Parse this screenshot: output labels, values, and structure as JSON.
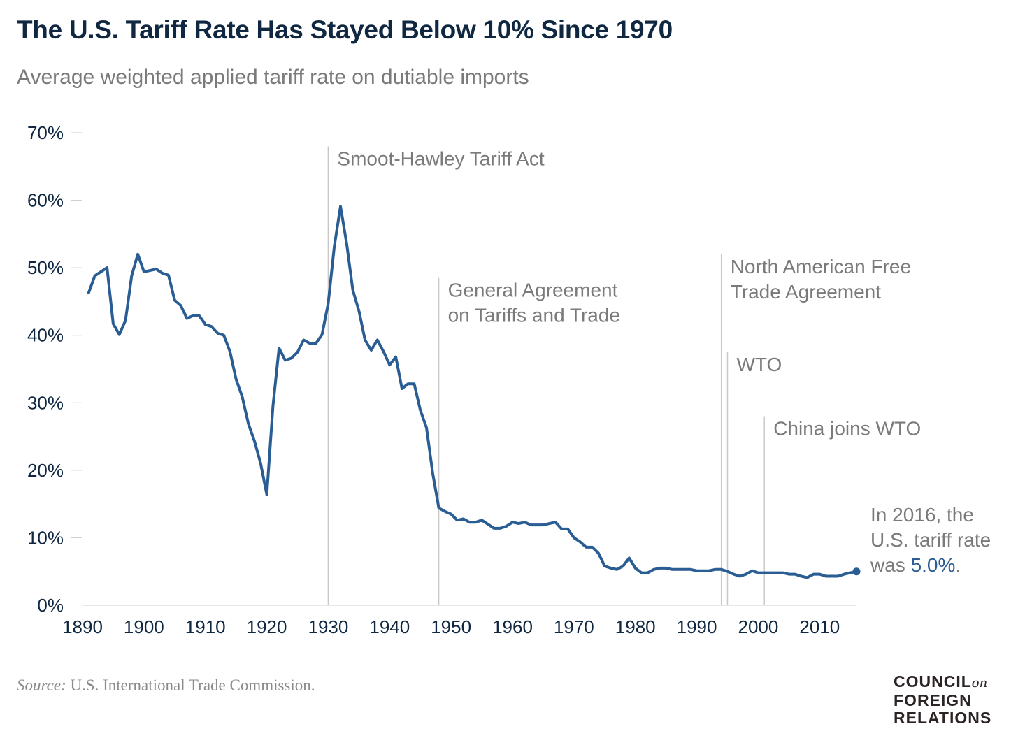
{
  "header": {
    "title": "The U.S. Tariff Rate Has Stayed Below 10% Since 1970",
    "subtitle": "Average weighted applied tariff rate on dutiable imports"
  },
  "footer": {
    "source_label": "Source:",
    "source_text": " U.S. International Trade Commission.",
    "logo_line1": "COUNCIL",
    "logo_on": "on",
    "logo_line2": "FOREIGN",
    "logo_line3": "RELATIONS"
  },
  "colors": {
    "line": "#2a5d93",
    "axis_text": "#0f2740",
    "annotation_text": "#7a7a7a",
    "annotation_line": "#c8c8c8"
  },
  "chart_data": {
    "type": "line",
    "title": "The U.S. Tariff Rate Has Stayed Below 10% Since 1970",
    "subtitle": "Average weighted applied tariff rate on dutiable imports",
    "xlabel": "",
    "ylabel": "",
    "xlim": [
      1890,
      2016
    ],
    "ylim": [
      0,
      70
    ],
    "x_ticks": [
      1890,
      1900,
      1910,
      1920,
      1930,
      1940,
      1950,
      1960,
      1970,
      1980,
      1990,
      2000,
      2010
    ],
    "y_ticks": [
      0,
      10,
      20,
      30,
      40,
      50,
      60,
      70
    ],
    "y_tick_labels": [
      "0%",
      "10%",
      "20%",
      "30%",
      "40%",
      "50%",
      "60%",
      "70%"
    ],
    "grid": false,
    "series": [
      {
        "x": [
          1891,
          1892,
          1894,
          1895,
          1896,
          1897,
          1898,
          1899,
          1900,
          1902,
          1903,
          1904,
          1905,
          1906,
          1907,
          1908,
          1909,
          1910,
          1911,
          1912,
          1913,
          1914,
          1915,
          1916,
          1917,
          1918,
          1919,
          1920,
          1921,
          1922,
          1923,
          1924,
          1925,
          1926,
          1927,
          1928,
          1929,
          1930,
          1931,
          1932,
          1933,
          1934,
          1935,
          1936,
          1937,
          1938,
          1939,
          1940,
          1941,
          1942,
          1943,
          1944,
          1945,
          1946,
          1947,
          1948,
          1949,
          1950,
          1951,
          1952,
          1953,
          1954,
          1955,
          1956,
          1957,
          1958,
          1959,
          1960,
          1961,
          1962,
          1963,
          1964,
          1965,
          1966,
          1967,
          1968,
          1969,
          1970,
          1971,
          1972,
          1973,
          1974,
          1975,
          1976,
          1977,
          1978,
          1979,
          1980,
          1981,
          1982,
          1983,
          1984,
          1985,
          1986,
          1987,
          1988,
          1989,
          1990,
          1991,
          1992,
          1993,
          1994,
          1995,
          1996,
          1997,
          1998,
          1999,
          2000,
          2001,
          2002,
          2003,
          2004,
          2005,
          2006,
          2007,
          2008,
          2009,
          2010,
          2011,
          2012,
          2013,
          2014,
          2015,
          2016
        ],
        "values": [
          46.3,
          48.8,
          50.0,
          41.7,
          40.1,
          42.2,
          48.8,
          52.0,
          49.4,
          49.8,
          49.2,
          48.9,
          45.2,
          44.4,
          42.5,
          42.9,
          42.9,
          41.6,
          41.3,
          40.3,
          40.0,
          37.6,
          33.5,
          30.9,
          26.9,
          24.3,
          21.0,
          16.4,
          29.5,
          38.1,
          36.3,
          36.6,
          37.5,
          39.3,
          38.8,
          38.8,
          40.1,
          44.7,
          53.2,
          59.1,
          53.6,
          46.7,
          43.6,
          39.3,
          37.8,
          39.3,
          37.6,
          35.6,
          36.8,
          32.1,
          32.8,
          32.8,
          28.9,
          26.3,
          19.6,
          14.4,
          13.9,
          13.5,
          12.6,
          12.8,
          12.3,
          12.3,
          12.6,
          12.0,
          11.4,
          11.4,
          11.7,
          12.3,
          12.1,
          12.3,
          11.9,
          11.9,
          11.9,
          12.1,
          12.3,
          11.3,
          11.3,
          10.0,
          9.4,
          8.6,
          8.6,
          7.7,
          5.8,
          5.5,
          5.3,
          5.8,
          7.0,
          5.5,
          4.8,
          4.8,
          5.3,
          5.5,
          5.5,
          5.3,
          5.3,
          5.3,
          5.3,
          5.1,
          5.1,
          5.1,
          5.3,
          5.3,
          5.0,
          4.6,
          4.3,
          4.6,
          5.1,
          4.8,
          4.8,
          4.8,
          4.8,
          4.8,
          4.6,
          4.6,
          4.3,
          4.1,
          4.6,
          4.6,
          4.3,
          4.3,
          4.3,
          4.6,
          4.8,
          5.0
        ]
      }
    ],
    "annotations": [
      {
        "year": 1930,
        "top_value": 68,
        "label": [
          "Smoot-Hawley Tariff Act"
        ]
      },
      {
        "year": 1948,
        "top_value": 48.5,
        "label": [
          "General Agreement",
          "on Tariffs and Trade"
        ]
      },
      {
        "year": 1994,
        "top_value": 52,
        "label": [
          "North American Free",
          "Trade Agreement"
        ]
      },
      {
        "year": 1995,
        "top_value": 37.5,
        "label": [
          "WTO"
        ]
      },
      {
        "year": 2001,
        "top_value": 28,
        "label": [
          "China joins WTO"
        ]
      }
    ],
    "end_note": {
      "line1": "In 2016, the",
      "line2": "U.S. tariff rate",
      "line3_prefix": "was ",
      "line3_value": "5.0%",
      "line3_suffix": "."
    }
  }
}
